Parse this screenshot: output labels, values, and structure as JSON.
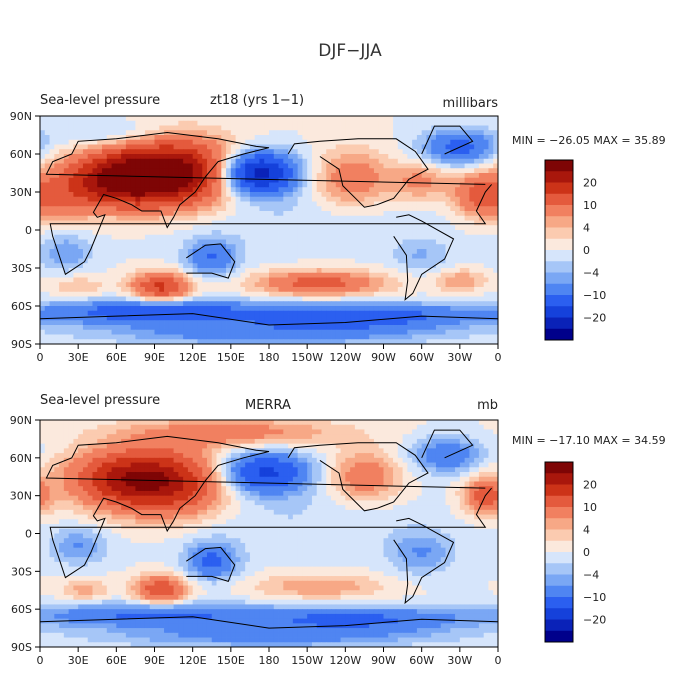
{
  "page_title": "DJF−JJA",
  "colorbar": {
    "colors": [
      "#00008b",
      "#0a22b8",
      "#1541db",
      "#2b5ff0",
      "#4f85f2",
      "#7aa7f4",
      "#a6c6f7",
      "#d6e5fb",
      "#fbe9dd",
      "#fbcbb0",
      "#f7a886",
      "#f18060",
      "#e45a3d",
      "#cc3318",
      "#a9170c",
      "#7e0505"
    ],
    "tick_labels": [
      "20",
      "10",
      "4",
      "0",
      "−4",
      "−10",
      "−20"
    ]
  },
  "chart_data": [
    {
      "type": "heatmap",
      "title_left": "Sea-level pressure",
      "title_center": "zt18 (yrs 1−1)",
      "units": "millibars",
      "stats": "MIN = −26.05 MAX =  35.89",
      "min": -26.05,
      "max": 35.89,
      "xticks": [
        "0",
        "30E",
        "60E",
        "90E",
        "120E",
        "150E",
        "180",
        "150W",
        "120W",
        "90W",
        "60W",
        "30W",
        "0"
      ],
      "yticks": [
        "90N",
        "60N",
        "30N",
        "0",
        "30S",
        "60S",
        "90S"
      ],
      "blobs": [
        {
          "lon": 100,
          "lat": 45,
          "v": 30,
          "sx": 38,
          "sy": 18
        },
        {
          "lon": 55,
          "lat": 38,
          "v": 16,
          "sx": 30,
          "sy": 14
        },
        {
          "lon": 15,
          "lat": 22,
          "v": 6,
          "sx": 18,
          "sy": 12
        },
        {
          "lon": 245,
          "lat": 40,
          "v": 9,
          "sx": 22,
          "sy": 16
        },
        {
          "lon": 300,
          "lat": 38,
          "v": 7,
          "sx": 16,
          "sy": 10
        },
        {
          "lon": 345,
          "lat": 28,
          "v": 11,
          "sx": 14,
          "sy": 12
        },
        {
          "lon": 170,
          "lat": 45,
          "v": -26,
          "sx": 22,
          "sy": 12
        },
        {
          "lon": 330,
          "lat": 65,
          "v": -12,
          "sx": 20,
          "sy": 10
        },
        {
          "lon": 60,
          "lat": 75,
          "v": -5,
          "sx": 30,
          "sy": 8
        },
        {
          "lon": 20,
          "lat": -18,
          "v": -6,
          "sx": 14,
          "sy": 10
        },
        {
          "lon": 135,
          "lat": -22,
          "v": -10,
          "sx": 14,
          "sy": 10
        },
        {
          "lon": 300,
          "lat": -20,
          "v": -4,
          "sx": 16,
          "sy": 10
        },
        {
          "lon": 95,
          "lat": -45,
          "v": 16,
          "sx": 16,
          "sy": 8
        },
        {
          "lon": 220,
          "lat": -42,
          "v": 12,
          "sx": 35,
          "sy": 7
        },
        {
          "lon": 30,
          "lat": -45,
          "v": 4,
          "sx": 15,
          "sy": 6
        },
        {
          "lon": 330,
          "lat": -40,
          "v": 6,
          "sx": 14,
          "sy": 6
        },
        {
          "lon": 90,
          "lat": -65,
          "v": -14,
          "sx": 60,
          "sy": 7
        },
        {
          "lon": 250,
          "lat": -68,
          "v": -14,
          "sx": 60,
          "sy": 7
        },
        {
          "lon": 180,
          "lat": -82,
          "v": -8,
          "sx": 90,
          "sy": 6
        },
        {
          "lon": 190,
          "lat": 10,
          "v": -2,
          "sx": 80,
          "sy": 20
        }
      ]
    },
    {
      "type": "heatmap",
      "title_left": "Sea-level pressure",
      "title_center": "MERRA",
      "units": "mb",
      "stats": "MIN = −17.10 MAX =  34.59",
      "min": -17.1,
      "max": 34.59,
      "xticks": [
        "0",
        "30E",
        "60E",
        "90E",
        "120E",
        "150E",
        "180",
        "150W",
        "120W",
        "90W",
        "60W",
        "30W",
        "0"
      ],
      "yticks": [
        "90N",
        "60N",
        "30N",
        "0",
        "30S",
        "60S",
        "90S"
      ],
      "blobs": [
        {
          "lon": 95,
          "lat": 40,
          "v": 22,
          "sx": 36,
          "sy": 18
        },
        {
          "lon": 60,
          "lat": 45,
          "v": 10,
          "sx": 30,
          "sy": 14
        },
        {
          "lon": 150,
          "lat": 80,
          "v": 8,
          "sx": 60,
          "sy": 8
        },
        {
          "lon": 255,
          "lat": 45,
          "v": 9,
          "sx": 20,
          "sy": 14
        },
        {
          "lon": 350,
          "lat": 30,
          "v": 12,
          "sx": 12,
          "sy": 10
        },
        {
          "lon": 175,
          "lat": 48,
          "v": -17,
          "sx": 26,
          "sy": 12
        },
        {
          "lon": 320,
          "lat": 62,
          "v": -9,
          "sx": 20,
          "sy": 10
        },
        {
          "lon": 30,
          "lat": -10,
          "v": -6,
          "sx": 16,
          "sy": 10
        },
        {
          "lon": 135,
          "lat": -22,
          "v": -11,
          "sx": 14,
          "sy": 10
        },
        {
          "lon": 300,
          "lat": -15,
          "v": -6,
          "sx": 18,
          "sy": 12
        },
        {
          "lon": 95,
          "lat": -45,
          "v": 14,
          "sx": 14,
          "sy": 8
        },
        {
          "lon": 220,
          "lat": -42,
          "v": 6,
          "sx": 35,
          "sy": 7
        },
        {
          "lon": 35,
          "lat": -45,
          "v": 5,
          "sx": 14,
          "sy": 6
        },
        {
          "lon": 90,
          "lat": -65,
          "v": -11,
          "sx": 60,
          "sy": 7
        },
        {
          "lon": 250,
          "lat": -68,
          "v": -11,
          "sx": 60,
          "sy": 7
        },
        {
          "lon": 180,
          "lat": -82,
          "v": -7,
          "sx": 90,
          "sy": 6
        },
        {
          "lon": 190,
          "lat": 10,
          "v": -2,
          "sx": 80,
          "sy": 20
        }
      ]
    }
  ]
}
